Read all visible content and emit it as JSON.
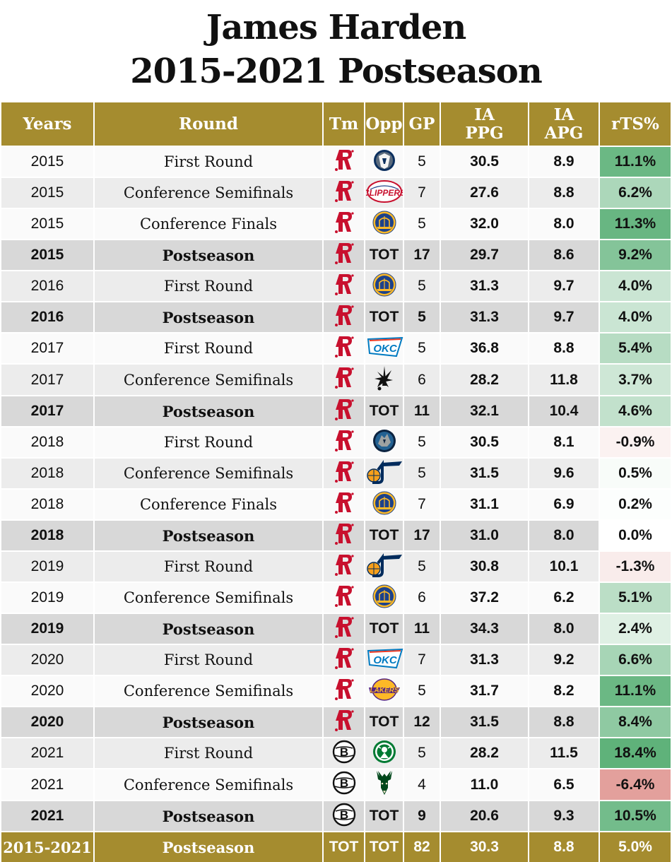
{
  "title": {
    "line1": "James Harden",
    "line2": "2015-2021 Postseason"
  },
  "headers": {
    "years": "Years",
    "round": "Round",
    "tm": "Tm",
    "opp": "Opp",
    "gp": "GP",
    "ppg_line1": "IA",
    "ppg_line2": "PPG",
    "apg_line1": "IA",
    "apg_line2": "APG",
    "rts": "rTS%"
  },
  "colors": {
    "header_gold": "#a58c2f",
    "rockets_red": "#c8102e",
    "positive_green": "#5fb27a",
    "negative_red": "#e3a09c"
  },
  "rows": [
    {
      "year": "2015",
      "round": "First Round",
      "tm": "rockets-icon",
      "opp": "mavericks-icon",
      "gp": "5",
      "ppg": "30.5",
      "apg": "8.9",
      "rts": "11.1%",
      "rts_value": 11.1,
      "type": "game"
    },
    {
      "year": "2015",
      "round": "Conference Semifinals",
      "tm": "rockets-icon",
      "opp": "clippers-icon",
      "gp": "7",
      "ppg": "27.6",
      "apg": "8.8",
      "rts": "6.2%",
      "rts_value": 6.2,
      "type": "game"
    },
    {
      "year": "2015",
      "round": "Conference Finals",
      "tm": "rockets-icon",
      "opp": "warriors-icon",
      "gp": "5",
      "ppg": "32.0",
      "apg": "8.0",
      "rts": "11.3%",
      "rts_value": 11.3,
      "type": "game"
    },
    {
      "year": "2015",
      "round": "Postseason",
      "tm": "rockets-icon",
      "opp": "TOT",
      "gp": "17",
      "ppg": "29.7",
      "apg": "8.6",
      "rts": "9.2%",
      "rts_value": 9.2,
      "type": "sub"
    },
    {
      "year": "2016",
      "round": "First Round",
      "tm": "rockets-icon",
      "opp": "warriors-icon",
      "gp": "5",
      "ppg": "31.3",
      "apg": "9.7",
      "rts": "4.0%",
      "rts_value": 4.0,
      "type": "game"
    },
    {
      "year": "2016",
      "round": "Postseason",
      "tm": "rockets-icon",
      "opp": "TOT",
      "gp": "5",
      "ppg": "31.3",
      "apg": "9.7",
      "rts": "4.0%",
      "rts_value": 4.0,
      "type": "sub"
    },
    {
      "year": "2017",
      "round": "First Round",
      "tm": "rockets-icon",
      "opp": "thunder-icon",
      "gp": "5",
      "ppg": "36.8",
      "apg": "8.8",
      "rts": "5.4%",
      "rts_value": 5.4,
      "type": "game"
    },
    {
      "year": "2017",
      "round": "Conference Semifinals",
      "tm": "rockets-icon",
      "opp": "spurs-icon",
      "gp": "6",
      "ppg": "28.2",
      "apg": "11.8",
      "rts": "3.7%",
      "rts_value": 3.7,
      "type": "game"
    },
    {
      "year": "2017",
      "round": "Postseason",
      "tm": "rockets-icon",
      "opp": "TOT",
      "gp": "11",
      "ppg": "32.1",
      "apg": "10.4",
      "rts": "4.6%",
      "rts_value": 4.6,
      "type": "sub"
    },
    {
      "year": "2018",
      "round": "First Round",
      "tm": "rockets-icon",
      "opp": "timberwolves-icon",
      "gp": "5",
      "ppg": "30.5",
      "apg": "8.1",
      "rts": "-0.9%",
      "rts_value": -0.9,
      "type": "game"
    },
    {
      "year": "2018",
      "round": "Conference Semifinals",
      "tm": "rockets-icon",
      "opp": "jazz-icon",
      "gp": "5",
      "ppg": "31.5",
      "apg": "9.6",
      "rts": "0.5%",
      "rts_value": 0.5,
      "type": "game"
    },
    {
      "year": "2018",
      "round": "Conference Finals",
      "tm": "rockets-icon",
      "opp": "warriors-icon",
      "gp": "7",
      "ppg": "31.1",
      "apg": "6.9",
      "rts": "0.2%",
      "rts_value": 0.2,
      "type": "game"
    },
    {
      "year": "2018",
      "round": "Postseason",
      "tm": "rockets-icon",
      "opp": "TOT",
      "gp": "17",
      "ppg": "31.0",
      "apg": "8.0",
      "rts": "0.0%",
      "rts_value": 0.0,
      "type": "sub"
    },
    {
      "year": "2019",
      "round": "First Round",
      "tm": "rockets-icon",
      "opp": "jazz-icon",
      "gp": "5",
      "ppg": "30.8",
      "apg": "10.1",
      "rts": "-1.3%",
      "rts_value": -1.3,
      "type": "game"
    },
    {
      "year": "2019",
      "round": "Conference Semifinals",
      "tm": "rockets-icon",
      "opp": "warriors-icon",
      "gp": "6",
      "ppg": "37.2",
      "apg": "6.2",
      "rts": "5.1%",
      "rts_value": 5.1,
      "type": "game"
    },
    {
      "year": "2019",
      "round": "Postseason",
      "tm": "rockets-icon",
      "opp": "TOT",
      "gp": "11",
      "ppg": "34.3",
      "apg": "8.0",
      "rts": "2.4%",
      "rts_value": 2.4,
      "type": "sub"
    },
    {
      "year": "2020",
      "round": "First Round",
      "tm": "rockets-icon",
      "opp": "thunder-icon",
      "gp": "7",
      "ppg": "31.3",
      "apg": "9.2",
      "rts": "6.6%",
      "rts_value": 6.6,
      "type": "game"
    },
    {
      "year": "2020",
      "round": "Conference Semifinals",
      "tm": "rockets-icon",
      "opp": "lakers-icon",
      "gp": "5",
      "ppg": "31.7",
      "apg": "8.2",
      "rts": "11.1%",
      "rts_value": 11.1,
      "type": "game"
    },
    {
      "year": "2020",
      "round": "Postseason",
      "tm": "rockets-icon",
      "opp": "TOT",
      "gp": "12",
      "ppg": "31.5",
      "apg": "8.8",
      "rts": "8.4%",
      "rts_value": 8.4,
      "type": "sub"
    },
    {
      "year": "2021",
      "round": "First Round",
      "tm": "nets-icon",
      "opp": "celtics-icon",
      "gp": "5",
      "ppg": "28.2",
      "apg": "11.5",
      "rts": "18.4%",
      "rts_value": 18.4,
      "type": "game"
    },
    {
      "year": "2021",
      "round": "Conference Semifinals",
      "tm": "nets-icon",
      "opp": "bucks-icon",
      "gp": "4",
      "ppg": "11.0",
      "apg": "6.5",
      "rts": "-6.4%",
      "rts_value": -6.4,
      "type": "game"
    },
    {
      "year": "2021",
      "round": "Postseason",
      "tm": "nets-icon",
      "opp": "TOT",
      "gp": "9",
      "ppg": "20.6",
      "apg": "9.3",
      "rts": "10.5%",
      "rts_value": 10.5,
      "type": "sub"
    }
  ],
  "total": {
    "year": "2015-2021",
    "round": "Postseason",
    "tm": "TOT",
    "opp": "TOT",
    "gp": "82",
    "ppg": "30.3",
    "apg": "8.8",
    "rts": "5.0%"
  }
}
